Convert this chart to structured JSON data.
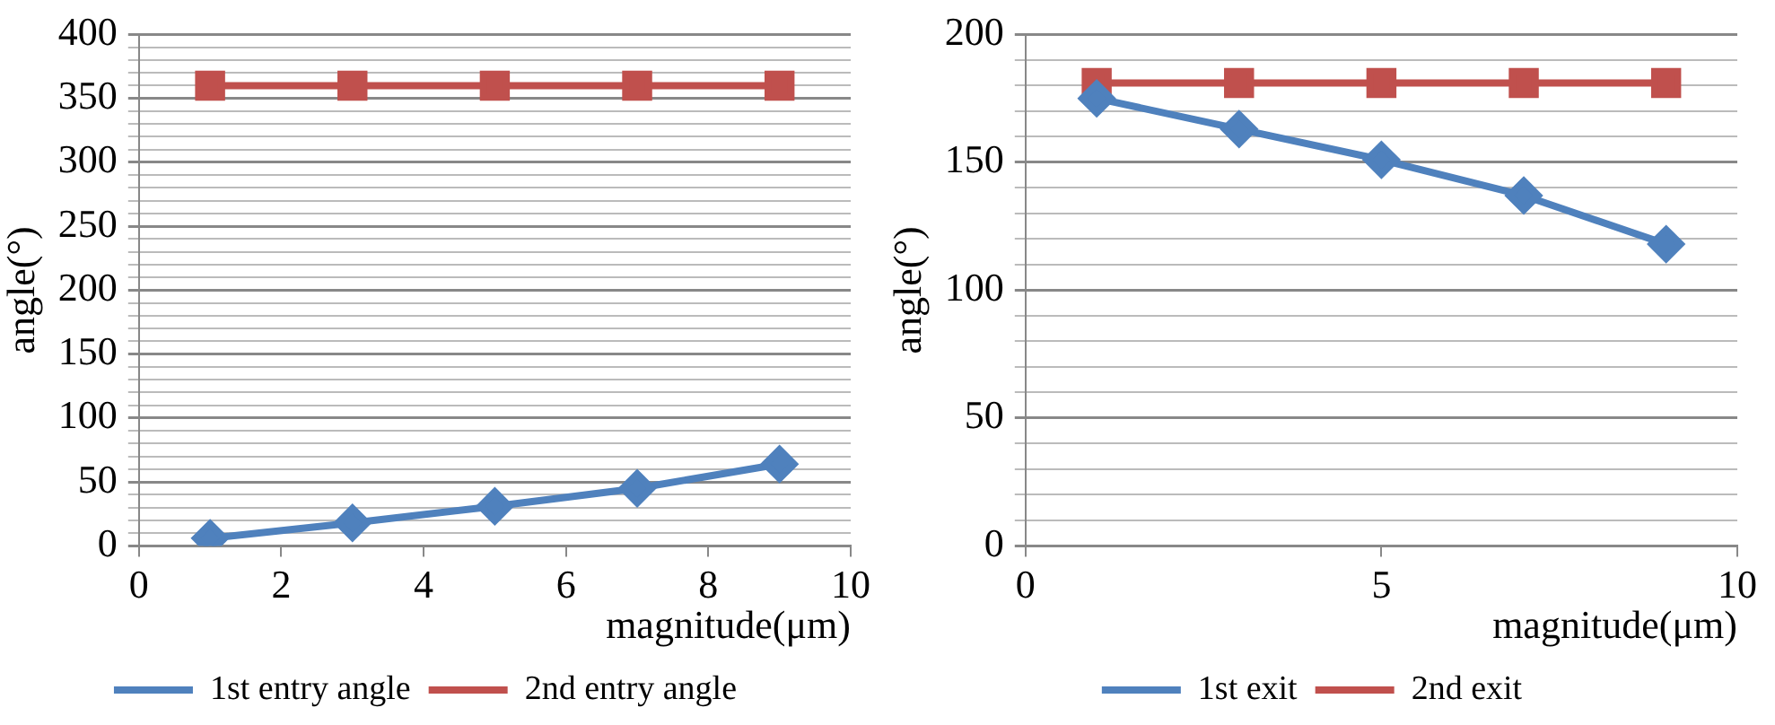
{
  "chart_data": [
    {
      "type": "line",
      "xlabel": "magnitude(μm)",
      "ylabel": "angle(°)",
      "xlim": [
        0,
        10
      ],
      "xticks": [
        0,
        2,
        4,
        6,
        8,
        10
      ],
      "ylim": [
        0,
        400
      ],
      "yticks": [
        0,
        {
          "value": 10,
          "label": null
        },
        {
          "value": 20,
          "label": null
        },
        {
          "value": 30,
          "label": null
        },
        {
          "value": 40,
          "label": null
        },
        50,
        {
          "value": 60,
          "label": null
        },
        {
          "value": 70,
          "label": null
        },
        {
          "value": 80,
          "label": null
        },
        {
          "value": 90,
          "label": null
        },
        100,
        {
          "value": 110,
          "label": null
        },
        {
          "value": 120,
          "label": null
        },
        {
          "value": 130,
          "label": null
        },
        {
          "value": 140,
          "label": null
        },
        150,
        {
          "value": 160,
          "label": null
        },
        {
          "value": 170,
          "label": null
        },
        {
          "value": 180,
          "label": null
        },
        {
          "value": 190,
          "label": null
        },
        200,
        {
          "value": 210,
          "label": null
        },
        {
          "value": 220,
          "label": null
        },
        {
          "value": 230,
          "label": null
        },
        {
          "value": 240,
          "label": null
        },
        250,
        {
          "value": 260,
          "label": null
        },
        {
          "value": 270,
          "label": null
        },
        {
          "value": 280,
          "label": null
        },
        {
          "value": 290,
          "label": null
        },
        300,
        {
          "value": 310,
          "label": null
        },
        {
          "value": 320,
          "label": null
        },
        {
          "value": 330,
          "label": null
        },
        {
          "value": 340,
          "label": null
        },
        350,
        {
          "value": 360,
          "label": null
        },
        {
          "value": 370,
          "label": null
        },
        {
          "value": 380,
          "label": null
        },
        {
          "value": 390,
          "label": null
        },
        400
      ],
      "grid": "y",
      "legend": "bottom",
      "line_style": "solid",
      "x": [
        1,
        3,
        5,
        7,
        9
      ],
      "series": [
        {
          "name": "1st entry angle",
          "color": "#4f81bd",
          "marker": "diamond",
          "values": [
            6,
            18,
            31,
            45,
            64
          ]
        },
        {
          "name": "2nd entry angle",
          "color": "#c0504d",
          "marker": "square",
          "values": [
            360,
            360,
            360,
            360,
            360
          ]
        }
      ]
    },
    {
      "type": "line",
      "xlabel": "magnitude(μm)",
      "ylabel": "angle(°)",
      "xlim": [
        0,
        10
      ],
      "xticks": [
        0,
        5,
        10
      ],
      "ylim": [
        0,
        200
      ],
      "yticks": [
        0,
        {
          "value": 10,
          "label": null
        },
        {
          "value": 20,
          "label": null
        },
        {
          "value": 30,
          "label": null
        },
        {
          "value": 40,
          "label": null
        },
        50,
        {
          "value": 60,
          "label": null
        },
        {
          "value": 70,
          "label": null
        },
        {
          "value": 80,
          "label": null
        },
        {
          "value": 90,
          "label": null
        },
        100,
        {
          "value": 110,
          "label": null
        },
        {
          "value": 120,
          "label": null
        },
        {
          "value": 130,
          "label": null
        },
        {
          "value": 140,
          "label": null
        },
        150,
        {
          "value": 160,
          "label": null
        },
        {
          "value": 170,
          "label": null
        },
        {
          "value": 180,
          "label": null
        },
        {
          "value": 190,
          "label": null
        },
        200
      ],
      "grid": "y",
      "legend": "bottom",
      "line_style": "solid",
      "x": [
        1,
        3,
        5,
        7,
        9
      ],
      "series": [
        {
          "name": "1st exit",
          "color": "#4f81bd",
          "marker": "diamond",
          "values": [
            175,
            163,
            151,
            137,
            118
          ]
        },
        {
          "name": "2nd exit",
          "color": "#c0504d",
          "marker": "square",
          "values": [
            181,
            181,
            181,
            181,
            181
          ]
        }
      ]
    }
  ]
}
